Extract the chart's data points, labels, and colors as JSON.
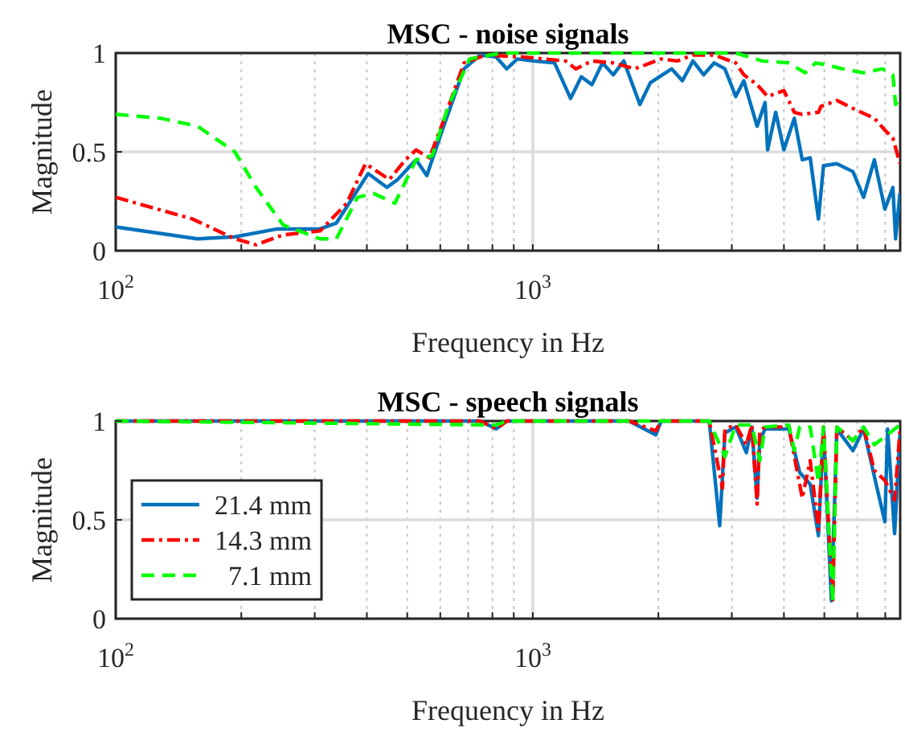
{
  "chart_data": [
    {
      "type": "line",
      "title": "MSC - noise signals",
      "xlabel": "Frequency in Hz",
      "ylabel": "Magnitude",
      "log": "x",
      "grid": true,
      "legend": false,
      "xlim": [
        100,
        7600
      ],
      "ylim": [
        0,
        1
      ],
      "xticks": [
        {
          "value": 100,
          "label": "10$^{2}$"
        },
        {
          "value": 200,
          "label": null
        },
        {
          "value": 300,
          "label": null
        },
        {
          "value": 400,
          "label": null
        },
        {
          "value": 500,
          "label": null
        },
        {
          "value": 600,
          "label": null
        },
        {
          "value": 700,
          "label": null
        },
        {
          "value": 800,
          "label": null
        },
        {
          "value": 900,
          "label": null
        },
        {
          "value": 1000,
          "label": "10$^{3}$"
        },
        {
          "value": 2000,
          "label": null
        },
        {
          "value": 3000,
          "label": null
        },
        {
          "value": 4000,
          "label": null
        },
        {
          "value": 5000,
          "label": null
        },
        {
          "value": 6000,
          "label": null
        },
        {
          "value": 7000,
          "label": null
        }
      ],
      "yticks": [
        0,
        0.5,
        1
      ],
      "series": [
        {
          "color": "#0072bd",
          "line_style": "solid",
          "x": [
            100,
            157,
            193,
            244,
            309,
            338,
            403,
            447,
            474,
            525,
            557,
            609,
            684,
            748,
            817,
            866,
            918,
            1002,
            1128,
            1232,
            1307,
            1386,
            1469,
            1559,
            1652,
            1806,
            1914,
            2153,
            2284,
            2421,
            2568,
            2723,
            2888,
            3066,
            3205,
            3450,
            3605,
            3656,
            3822,
            3999,
            4236,
            4426,
            4625,
            4840,
            4977,
            5358,
            5856,
            6211,
            6590,
            6985,
            7300,
            7410,
            7590
          ],
          "values": [
            0.12,
            0.06,
            0.07,
            0.11,
            0.11,
            0.14,
            0.39,
            0.32,
            0.36,
            0.46,
            0.38,
            0.62,
            0.92,
            0.99,
            0.98,
            0.92,
            0.97,
            0.96,
            0.95,
            0.77,
            0.88,
            0.84,
            0.95,
            0.89,
            0.96,
            0.74,
            0.85,
            0.92,
            0.86,
            0.96,
            0.89,
            0.95,
            0.92,
            0.78,
            0.86,
            0.63,
            0.75,
            0.51,
            0.7,
            0.51,
            0.67,
            0.46,
            0.47,
            0.16,
            0.43,
            0.44,
            0.4,
            0.27,
            0.46,
            0.21,
            0.32,
            0.06,
            0.29
          ]
        },
        {
          "color": "#ff0000",
          "line_style": "dashdot",
          "x": [
            100,
            153,
            193,
            217,
            252,
            309,
            358,
            397,
            453,
            495,
            525,
            565,
            609,
            684,
            770,
            946,
            1197,
            1268,
            1386,
            1559,
            1754,
            2031,
            2220,
            2421,
            2723,
            3066,
            3205,
            3450,
            3656,
            3999,
            4236,
            4426,
            4840,
            4909,
            5358,
            5856,
            6590,
            6985,
            7300,
            7590
          ],
          "values": [
            0.27,
            0.16,
            0.06,
            0.03,
            0.08,
            0.1,
            0.24,
            0.44,
            0.36,
            0.46,
            0.51,
            0.47,
            0.65,
            0.95,
            0.99,
            0.98,
            0.96,
            0.92,
            0.96,
            0.95,
            0.92,
            0.97,
            0.96,
            0.99,
            0.99,
            0.95,
            0.89,
            0.84,
            0.78,
            0.81,
            0.7,
            0.69,
            0.7,
            0.73,
            0.76,
            0.72,
            0.67,
            0.61,
            0.57,
            0.44
          ]
        },
        {
          "color": "#00ff00",
          "line_style": "dashed",
          "x": [
            100,
            128,
            157,
            193,
            217,
            252,
            309,
            338,
            380,
            415,
            467,
            525,
            574,
            627,
            705,
            841,
            1268,
            3066,
            3548,
            4110,
            4497,
            4764,
            5058,
            5525,
            6211,
            6887,
            7300,
            7410,
            7590
          ],
          "values": [
            0.69,
            0.67,
            0.63,
            0.5,
            0.32,
            0.13,
            0.06,
            0.06,
            0.27,
            0.29,
            0.24,
            0.46,
            0.48,
            0.73,
            0.97,
            1,
            1,
            1,
            0.96,
            0.95,
            0.9,
            0.95,
            0.94,
            0.92,
            0.9,
            0.92,
            0.89,
            0.74,
            0.77
          ]
        }
      ]
    },
    {
      "type": "line",
      "title": "MSC - speech signals",
      "xlabel": "Frequency in Hz",
      "ylabel": "Magnitude",
      "log": "x",
      "grid": true,
      "legend": "bottom left",
      "xlim": [
        100,
        7600
      ],
      "ylim": [
        0,
        1
      ],
      "xticks": [
        {
          "value": 100,
          "label": "10$^{2}$"
        },
        {
          "value": 200,
          "label": null
        },
        {
          "value": 300,
          "label": null
        },
        {
          "value": 400,
          "label": null
        },
        {
          "value": 500,
          "label": null
        },
        {
          "value": 600,
          "label": null
        },
        {
          "value": 700,
          "label": null
        },
        {
          "value": 800,
          "label": null
        },
        {
          "value": 900,
          "label": null
        },
        {
          "value": 1000,
          "label": "10$^{3}$"
        },
        {
          "value": 2000,
          "label": null
        },
        {
          "value": 3000,
          "label": null
        },
        {
          "value": 4000,
          "label": null
        },
        {
          "value": 5000,
          "label": null
        },
        {
          "value": 6000,
          "label": null
        },
        {
          "value": 7000,
          "label": null
        }
      ],
      "yticks": [
        0,
        0.5,
        1
      ],
      "series": [
        {
          "name": "21.4 mm",
          "color": "#0072bd",
          "line_style": "solid",
          "x": [
            100,
            748,
            817,
            866,
            1000,
            1702,
            1972,
            2031,
            2649,
            2806,
            2888,
            3066,
            3251,
            3349,
            3450,
            3501,
            3605,
            4110,
            4365,
            4625,
            4840,
            4977,
            5200,
            5358,
            5856,
            6211,
            6590,
            6985,
            7090,
            7370,
            7590
          ],
          "values": [
            1,
            1,
            0.96,
            1,
            1,
            1,
            0.93,
            1,
            1,
            0.47,
            0.94,
            0.97,
            0.84,
            0.97,
            0.61,
            0.9,
            0.96,
            0.96,
            0.74,
            0.68,
            0.42,
            0.96,
            0.09,
            0.96,
            0.85,
            0.96,
            0.72,
            0.49,
            0.96,
            0.43,
            0.93
          ]
        },
        {
          "name": "14.3 mm",
          "color": "#ff0000",
          "line_style": "dashdot",
          "x": [
            100,
            748,
            817,
            866,
            1000,
            1702,
            1972,
            2031,
            2649,
            2849,
            2888,
            3066,
            3251,
            3349,
            3450,
            3501,
            3605,
            4110,
            4426,
            4625,
            4840,
            4977,
            5236,
            5358,
            5856,
            6211,
            6590,
            6985,
            7370,
            7590
          ],
          "values": [
            1,
            1,
            0.96,
            1,
            1,
            1,
            0.95,
            1,
            1,
            0.66,
            0.96,
            0.98,
            0.88,
            0.98,
            0.58,
            0.95,
            0.97,
            0.97,
            0.61,
            0.8,
            0.45,
            0.97,
            0.08,
            0.97,
            0.9,
            0.97,
            0.75,
            0.7,
            0.6,
            0.95
          ]
        },
        {
          "name": "7.1 mm",
          "color": "#00ff00",
          "line_style": "dashed",
          "x": [
            100,
            817,
            866,
            1000,
            2649,
            2888,
            3066,
            3349,
            3501,
            3605,
            4110,
            4236,
            4365,
            4625,
            4840,
            4977,
            5236,
            5358,
            5856,
            6211,
            6590,
            7590
          ],
          "values": [
            1,
            0.98,
            1,
            1,
            1,
            0.82,
            0.98,
            0.98,
            0.8,
            0.97,
            0.98,
            0.85,
            0.97,
            0.97,
            0.69,
            0.97,
            0.08,
            0.97,
            0.9,
            0.97,
            0.88,
            0.98
          ]
        }
      ]
    }
  ]
}
